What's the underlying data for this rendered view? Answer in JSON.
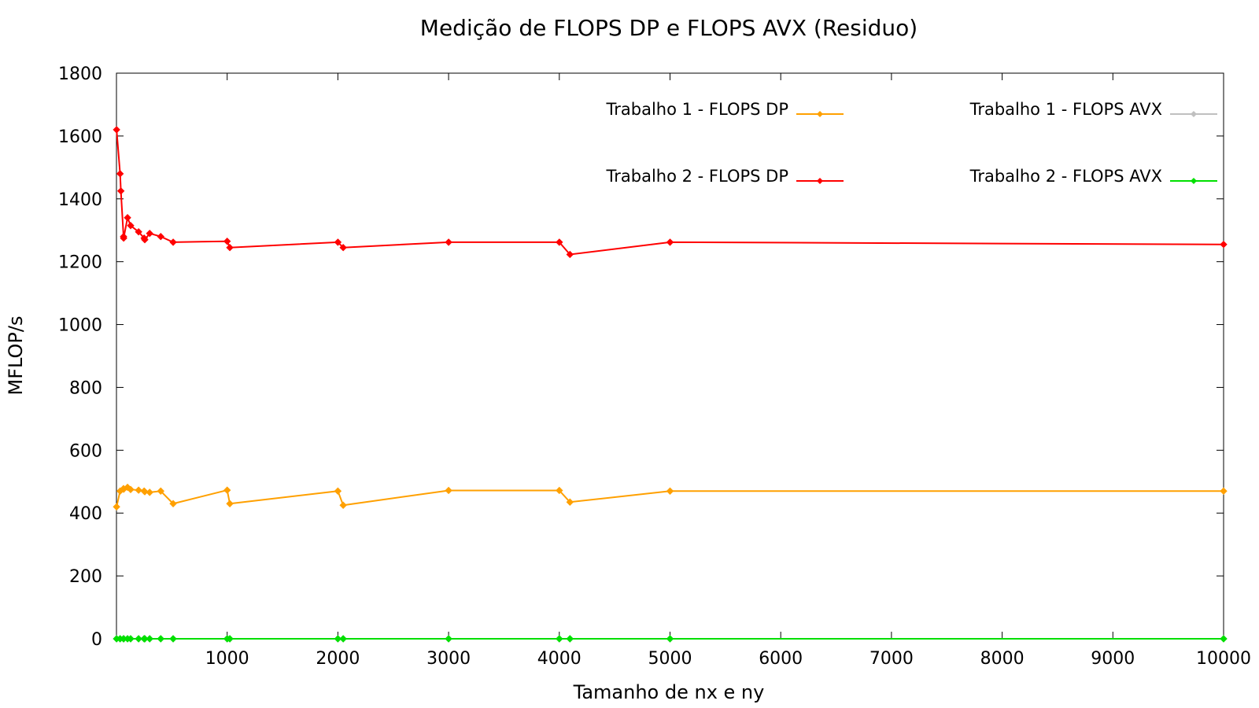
{
  "chart_data": {
    "type": "line",
    "title": "Medição de FLOPS DP e FLOPS AVX (Residuo)",
    "xlabel": "Tamanho de nx e ny",
    "ylabel": "MFLOP/s",
    "xlim": [
      0,
      10000
    ],
    "ylim": [
      0,
      1800
    ],
    "xticks": [
      1000,
      2000,
      3000,
      4000,
      5000,
      6000,
      7000,
      8000,
      9000,
      10000
    ],
    "yticks": [
      0,
      200,
      400,
      600,
      800,
      1000,
      1200,
      1400,
      1600,
      1800
    ],
    "grid": false,
    "legend_position": "top-right",
    "series": [
      {
        "name": "Trabalho 1 - FLOPS DP",
        "color": "#ffa000",
        "x": [
          1,
          33,
          64,
          65,
          100,
          128,
          200,
          250,
          256,
          300,
          400,
          512,
          1000,
          1024,
          2000,
          2048,
          3000,
          4000,
          4096,
          5000,
          10000
        ],
        "y": [
          420,
          470,
          478,
          476,
          482,
          475,
          473,
          470,
          468,
          466,
          470,
          430,
          473,
          430,
          470,
          425,
          472,
          472,
          435,
          470,
          470
        ]
      },
      {
        "name": "Trabalho 1 - FLOPS AVX",
        "color": "#c0c0c0",
        "x": [
          1,
          33,
          64,
          65,
          100,
          128,
          200,
          250,
          256,
          300,
          400,
          512,
          1000,
          1024,
          2000,
          2048,
          3000,
          4000,
          4096,
          5000,
          10000
        ],
        "y": [
          0,
          0,
          0,
          0,
          0,
          0,
          0,
          0,
          0,
          0,
          0,
          0,
          0,
          0,
          0,
          0,
          0,
          0,
          0,
          0,
          0
        ]
      },
      {
        "name": "Trabalho 2 - FLOPS DP",
        "color": "#ff0000",
        "x": [
          1,
          33,
          40,
          64,
          65,
          100,
          128,
          200,
          250,
          256,
          300,
          400,
          512,
          1000,
          1024,
          2000,
          2048,
          3000,
          4000,
          4096,
          5000,
          10000
        ],
        "y": [
          1620,
          1480,
          1425,
          1280,
          1275,
          1340,
          1315,
          1295,
          1275,
          1270,
          1290,
          1280,
          1262,
          1265,
          1245,
          1262,
          1245,
          1262,
          1262,
          1223,
          1262,
          1255
        ]
      },
      {
        "name": "Trabalho 2 - FLOPS AVX",
        "color": "#00e000",
        "x": [
          1,
          33,
          64,
          65,
          100,
          128,
          200,
          250,
          256,
          300,
          400,
          512,
          1000,
          1024,
          2000,
          2048,
          3000,
          4000,
          4096,
          5000,
          10000
        ],
        "y": [
          0,
          0,
          0,
          0,
          0,
          0,
          0,
          0,
          0,
          0,
          0,
          0,
          0,
          0,
          0,
          0,
          0,
          0,
          0,
          0,
          0
        ]
      }
    ]
  }
}
